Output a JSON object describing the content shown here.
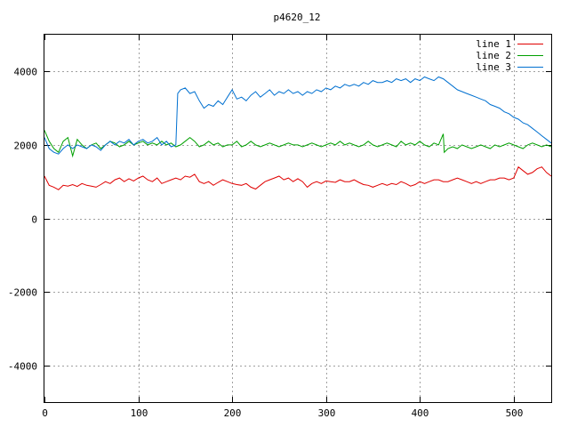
{
  "chart_data": {
    "type": "line",
    "title": "p4620_12",
    "xlim": [
      0,
      540
    ],
    "ylim": [
      -5000,
      5000
    ],
    "xticks": [
      0,
      100,
      200,
      300,
      400,
      500
    ],
    "yticks": [
      -4000,
      -2000,
      0,
      2000,
      4000
    ],
    "grid": true,
    "legend_position": "top-right",
    "series": [
      {
        "name": "line 1",
        "color": "#e00000",
        "x": [
          0,
          5,
          10,
          15,
          20,
          25,
          30,
          35,
          40,
          45,
          50,
          55,
          60,
          65,
          70,
          75,
          80,
          85,
          90,
          95,
          100,
          105,
          110,
          115,
          120,
          125,
          130,
          135,
          140,
          145,
          150,
          155,
          160,
          165,
          170,
          175,
          180,
          185,
          190,
          195,
          200,
          205,
          210,
          215,
          220,
          225,
          230,
          235,
          240,
          245,
          250,
          255,
          260,
          265,
          270,
          275,
          280,
          285,
          290,
          295,
          300,
          305,
          310,
          315,
          320,
          325,
          330,
          335,
          340,
          345,
          350,
          355,
          360,
          365,
          370,
          375,
          380,
          385,
          390,
          395,
          400,
          405,
          410,
          415,
          420,
          425,
          430,
          435,
          440,
          445,
          450,
          455,
          460,
          465,
          470,
          475,
          480,
          485,
          490,
          495,
          500,
          505,
          510,
          515,
          520,
          525,
          530,
          535,
          540
        ],
        "y": [
          1150,
          900,
          850,
          780,
          900,
          880,
          920,
          870,
          950,
          900,
          880,
          850,
          920,
          1000,
          950,
          1050,
          1100,
          1000,
          1080,
          1020,
          1100,
          1150,
          1050,
          1000,
          1100,
          950,
          1000,
          1050,
          1100,
          1050,
          1150,
          1120,
          1200,
          1000,
          950,
          1000,
          900,
          980,
          1050,
          1000,
          950,
          920,
          900,
          950,
          850,
          800,
          900,
          1000,
          1050,
          1100,
          1150,
          1050,
          1100,
          1000,
          1080,
          1000,
          850,
          950,
          1000,
          950,
          1020,
          1000,
          980,
          1050,
          1000,
          1000,
          1050,
          980,
          920,
          900,
          850,
          900,
          950,
          900,
          950,
          920,
          1000,
          950,
          880,
          920,
          1000,
          950,
          1000,
          1050,
          1050,
          1000,
          1000,
          1050,
          1100,
          1050,
          1000,
          950,
          1000,
          950,
          1000,
          1050,
          1050,
          1100,
          1100,
          1050,
          1100,
          1400,
          1300,
          1200,
          1250,
          1350,
          1400,
          1250,
          1150
        ]
      },
      {
        "name": "line 2",
        "color": "#00a000",
        "x": [
          0,
          5,
          10,
          15,
          20,
          25,
          30,
          35,
          40,
          45,
          50,
          55,
          60,
          65,
          70,
          75,
          80,
          85,
          90,
          95,
          100,
          105,
          110,
          115,
          120,
          125,
          130,
          135,
          140,
          145,
          150,
          155,
          160,
          165,
          170,
          175,
          180,
          185,
          190,
          195,
          200,
          205,
          210,
          215,
          220,
          225,
          230,
          235,
          240,
          245,
          250,
          255,
          260,
          265,
          270,
          275,
          280,
          285,
          290,
          295,
          300,
          305,
          310,
          315,
          320,
          325,
          330,
          335,
          340,
          345,
          350,
          355,
          360,
          365,
          370,
          375,
          380,
          385,
          390,
          395,
          400,
          405,
          410,
          415,
          420,
          425,
          426,
          430,
          435,
          440,
          445,
          450,
          455,
          460,
          465,
          470,
          475,
          480,
          485,
          490,
          495,
          500,
          505,
          510,
          515,
          520,
          525,
          530,
          535,
          540
        ],
        "y": [
          2400,
          2100,
          1900,
          1800,
          2100,
          2200,
          1700,
          2150,
          2000,
          1900,
          2000,
          2050,
          1900,
          2000,
          2100,
          2050,
          1950,
          2000,
          2100,
          2000,
          2050,
          2100,
          2000,
          2050,
          2000,
          2100,
          2000,
          2050,
          1950,
          2000,
          2100,
          2200,
          2100,
          1950,
          2000,
          2100,
          2000,
          2050,
          1950,
          2000,
          2000,
          2100,
          1950,
          2000,
          2100,
          2000,
          1950,
          2000,
          2050,
          2000,
          1950,
          2000,
          2050,
          2000,
          2000,
          1950,
          2000,
          2050,
          2000,
          1950,
          2000,
          2050,
          2000,
          2100,
          2000,
          2050,
          2000,
          1950,
          2000,
          2100,
          2000,
          1950,
          2000,
          2050,
          2000,
          1950,
          2100,
          2000,
          2050,
          2000,
          2100,
          2000,
          1950,
          2050,
          2000,
          2300,
          1800,
          1900,
          1950,
          1900,
          2000,
          1950,
          1900,
          1950,
          2000,
          1950,
          1900,
          2000,
          1950,
          2000,
          2050,
          2000,
          1950,
          1900,
          2000,
          2050,
          2000,
          1950,
          2000,
          1950
        ]
      },
      {
        "name": "line 3",
        "color": "#0070d0",
        "x": [
          0,
          5,
          10,
          15,
          20,
          25,
          30,
          35,
          40,
          45,
          50,
          55,
          60,
          65,
          70,
          75,
          80,
          85,
          90,
          95,
          100,
          105,
          110,
          115,
          120,
          125,
          130,
          135,
          140,
          142,
          145,
          150,
          155,
          160,
          165,
          170,
          175,
          180,
          185,
          190,
          195,
          200,
          205,
          210,
          215,
          220,
          225,
          230,
          235,
          240,
          245,
          250,
          255,
          260,
          265,
          270,
          275,
          280,
          285,
          290,
          295,
          300,
          305,
          310,
          315,
          320,
          325,
          330,
          335,
          340,
          345,
          350,
          355,
          360,
          365,
          370,
          375,
          380,
          385,
          390,
          395,
          400,
          405,
          410,
          415,
          420,
          425,
          430,
          435,
          440,
          445,
          450,
          455,
          460,
          465,
          470,
          475,
          480,
          485,
          490,
          495,
          500,
          505,
          510,
          515,
          520,
          525,
          530,
          535,
          540
        ],
        "y": [
          2200,
          1900,
          1800,
          1750,
          1900,
          2000,
          1900,
          2000,
          1950,
          1900,
          2000,
          1950,
          1850,
          2000,
          2100,
          2000,
          2100,
          2050,
          2150,
          2000,
          2100,
          2150,
          2050,
          2100,
          2200,
          2000,
          2100,
          1950,
          2000,
          3400,
          3500,
          3550,
          3400,
          3450,
          3200,
          3000,
          3100,
          3050,
          3200,
          3100,
          3300,
          3500,
          3250,
          3300,
          3200,
          3350,
          3450,
          3300,
          3400,
          3500,
          3350,
          3450,
          3400,
          3500,
          3400,
          3450,
          3350,
          3450,
          3400,
          3500,
          3450,
          3550,
          3500,
          3600,
          3550,
          3650,
          3600,
          3650,
          3600,
          3700,
          3650,
          3750,
          3700,
          3700,
          3750,
          3700,
          3800,
          3750,
          3800,
          3700,
          3800,
          3750,
          3850,
          3800,
          3750,
          3850,
          3800,
          3700,
          3600,
          3500,
          3450,
          3400,
          3350,
          3300,
          3250,
          3200,
          3100,
          3050,
          3000,
          2900,
          2850,
          2750,
          2700,
          2600,
          2550,
          2450,
          2350,
          2250,
          2150,
          2050
        ]
      }
    ]
  }
}
